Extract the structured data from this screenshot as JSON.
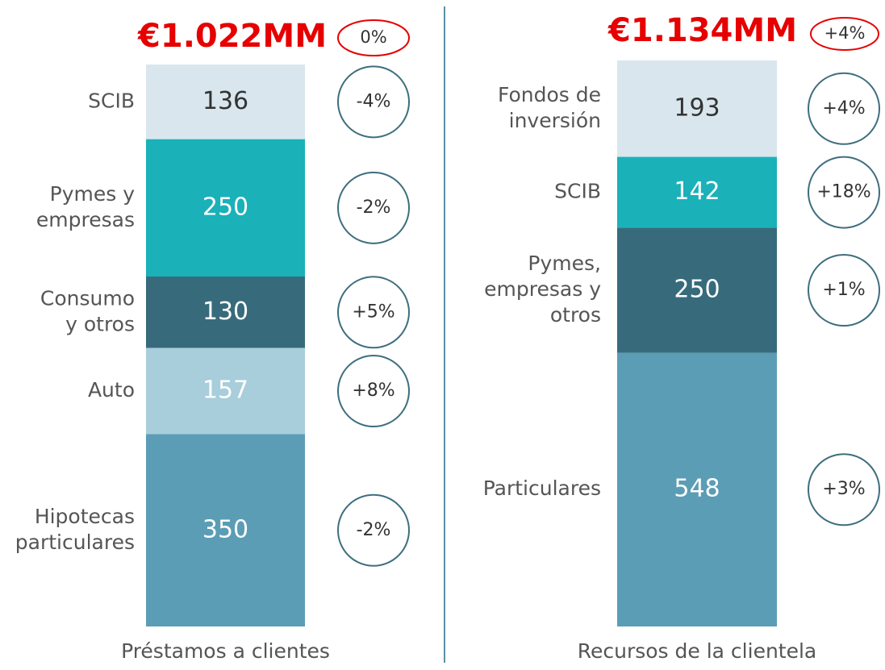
{
  "chart_data": [
    {
      "type": "stacked_bar",
      "total_label": "€1.022MM",
      "total_change": "0%",
      "x_label": "Préstamos a clientes",
      "categories": [
        [
          "SCIB"
        ],
        [
          "Pymes y",
          "empresas"
        ],
        [
          "Consumo",
          "y otros"
        ],
        [
          "Auto"
        ],
        [
          "Hipotecas",
          "particulares"
        ]
      ],
      "values": [
        136,
        250,
        130,
        157,
        350
      ],
      "change_labels": [
        "-4%",
        "-2%",
        "+5%",
        "+8%",
        "-2%"
      ],
      "colors": [
        "#d9e6ed",
        "#1ab1b9",
        "#376b7b",
        "#a8cddb",
        "#5b9db5"
      ],
      "label_colors": [
        "#333333",
        "#ffffff",
        "#ffffff",
        "#ffffff",
        "#ffffff"
      ]
    },
    {
      "type": "stacked_bar",
      "total_label": "€1.134MM",
      "total_change": "+4%",
      "x_label": "Recursos de la clientela",
      "categories": [
        [
          "Fondos de",
          "inversión"
        ],
        [
          "SCIB"
        ],
        [
          "Pymes,",
          "empresas y",
          "otros"
        ],
        [
          "Particulares"
        ]
      ],
      "values": [
        193,
        142,
        250,
        548
      ],
      "change_labels": [
        "+4%",
        "+18%",
        "+1%",
        "+3%"
      ],
      "colors": [
        "#d9e6ed",
        "#1ab1b9",
        "#376b7b",
        "#5b9db5"
      ],
      "label_colors": [
        "#333333",
        "#ffffff",
        "#ffffff",
        "#ffffff"
      ]
    }
  ]
}
